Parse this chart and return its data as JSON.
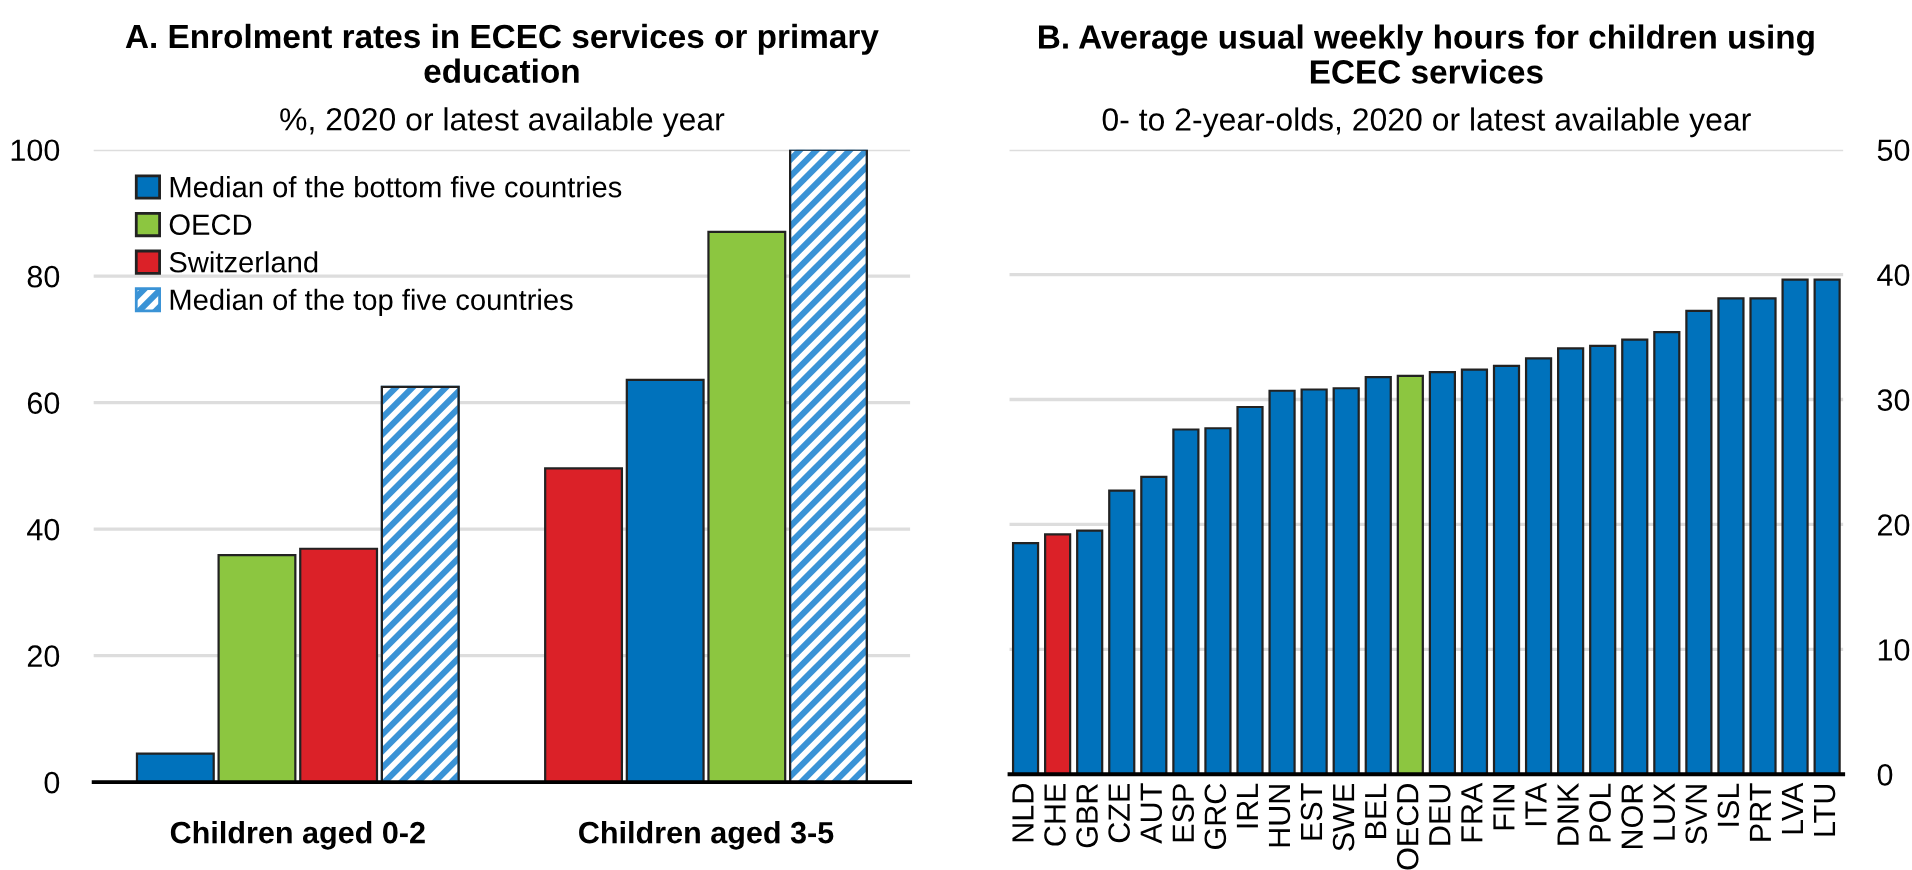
{
  "chart_data": [
    {
      "type": "bar",
      "title": "A. Enrolment rates in ECEC services or primary\neducation",
      "subtitle": "%, 2020 or latest available year",
      "categories": [
        "Children aged 0-2",
        "Children aged 3-5"
      ],
      "series": [
        {
          "name": "Median of the bottom five countries",
          "color": "#0072bc",
          "values": [
            4.5,
            63.6
          ]
        },
        {
          "name": "OECD",
          "color": "#8cc640",
          "values": [
            35.9,
            87
          ]
        },
        {
          "name": "Switzerland",
          "color": "#db2128",
          "values": [
            36.9,
            49.6
          ]
        },
        {
          "name": "Median of the top five countries",
          "color": "#3a93d6",
          "values": [
            62.5,
            100
          ]
        }
      ],
      "ylim": [
        0,
        100
      ],
      "yticks": [
        0,
        20,
        40,
        60,
        80,
        100
      ],
      "grid": "y",
      "legend": "top left"
    },
    {
      "type": "bar",
      "title": "B. Average usual weekly hours for children using\nECEC services",
      "subtitle": "0- to 2-year-olds, 2020 or latest available year",
      "categories": [
        "NLD",
        "CHE",
        "GBR",
        "CZE",
        "AUT",
        "ESP",
        "GRC",
        "IRL",
        "HUN",
        "EST",
        "SWE",
        "BEL",
        "OECD",
        "DEU",
        "FRA",
        "FIN",
        "ITA",
        "DNK",
        "POL",
        "NOR",
        "LUX",
        "SVN",
        "ISL",
        "PRT",
        "LVA",
        "LTU"
      ],
      "values": [
        18.5,
        19.2,
        19.5,
        22.7,
        23.8,
        27.6,
        27.7,
        29.4,
        30.7,
        30.8,
        30.9,
        31.8,
        31.9,
        32.2,
        32.4,
        32.7,
        33.3,
        34.1,
        34.3,
        34.8,
        35.4,
        37.1,
        38.1,
        38.1,
        39.6,
        39.6
      ],
      "colors": [
        "#0072bc",
        "#db2128",
        "#0072bc",
        "#0072bc",
        "#0072bc",
        "#0072bc",
        "#0072bc",
        "#0072bc",
        "#0072bc",
        "#0072bc",
        "#0072bc",
        "#0072bc",
        "#8cc640",
        "#0072bc",
        "#0072bc",
        "#0072bc",
        "#0072bc",
        "#0072bc",
        "#0072bc",
        "#0072bc",
        "#0072bc",
        "#0072bc",
        "#0072bc",
        "#0072bc",
        "#0072bc",
        "#0072bc"
      ],
      "ylim": [
        0,
        50
      ],
      "yticks": [
        0,
        10,
        20,
        30,
        40,
        50
      ],
      "grid": "y"
    }
  ]
}
